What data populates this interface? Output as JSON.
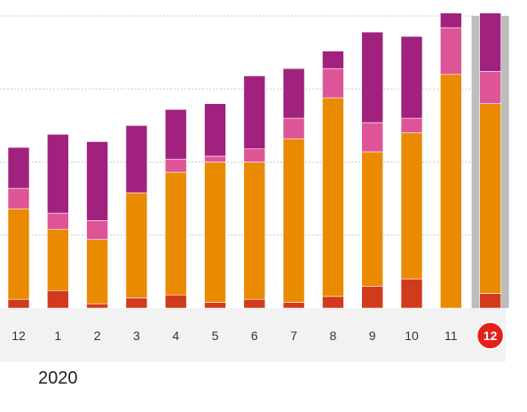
{
  "chart_data": {
    "type": "bar",
    "stacked": true,
    "categories": [
      "12",
      "1",
      "2",
      "3",
      "4",
      "5",
      "6",
      "7",
      "8",
      "9",
      "10",
      "11",
      "12"
    ],
    "selected_category_index": 12,
    "year_label": "2020",
    "ylim": [
      0,
      100
    ],
    "grid": true,
    "series": [
      {
        "color": "#d13a1c",
        "values": [
          3,
          6,
          1.5,
          3.5,
          4.5,
          2,
          3,
          2,
          4,
          7.5,
          10,
          0,
          5
        ]
      },
      {
        "color": "#ea8a00",
        "values": [
          31,
          21,
          22,
          36,
          42,
          48,
          47,
          56,
          68,
          46,
          50,
          80,
          65
        ]
      },
      {
        "color": "#de5597",
        "values": [
          7,
          5.5,
          6.5,
          0,
          4.5,
          2,
          4.5,
          7,
          10,
          10,
          5,
          16,
          11
        ]
      },
      {
        "color": "#a0227e",
        "values": [
          14,
          27,
          27,
          23,
          17,
          18,
          25,
          17,
          6,
          31,
          28,
          5,
          20
        ]
      }
    ],
    "colors": {
      "grid": "#c8c8c8",
      "axis_band": "#f2f2f2",
      "selected_band": "#bdbdbd",
      "selected_badge": "#e32119"
    }
  }
}
